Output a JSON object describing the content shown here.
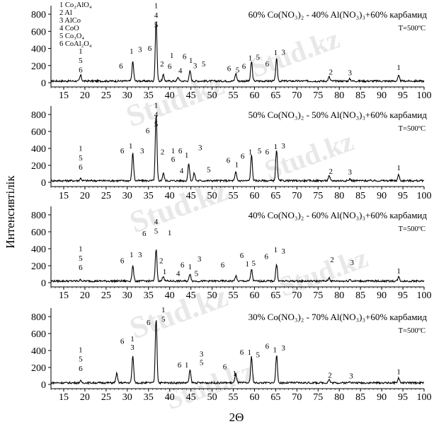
{
  "watermark": "Stud.kz",
  "xlabel": "2Θ",
  "ylabel": "Интенсивтілік",
  "xticks": [
    15,
    20,
    25,
    30,
    35,
    40,
    45,
    50,
    55,
    60,
    65,
    70,
    75,
    80,
    85,
    90,
    95,
    100
  ],
  "yticks": [
    0,
    200,
    400,
    600,
    800
  ],
  "legend": [
    "1 Co₂AlO₄",
    "2 Al",
    "3 AlCo",
    "4 CoO",
    "5 Co₃O₄",
    "6 CoAl₂O₄"
  ],
  "chart_data": [
    {
      "type": "line",
      "title": "60% Co(NO₃)₂ - 40% Al(NO₃)₃+60% карбамид",
      "subtitle": "T=500ºC",
      "xlim": [
        12,
        100
      ],
      "ylim": [
        0,
        900
      ],
      "peaks": [
        [
          19.0,
          70
        ],
        [
          31.3,
          230
        ],
        [
          36.8,
          700
        ],
        [
          38.5,
          70
        ],
        [
          42.0,
          45
        ],
        [
          44.8,
          120
        ],
        [
          55.6,
          90
        ],
        [
          59.3,
          230
        ],
        [
          65.2,
          260
        ],
        [
          77.6,
          50
        ],
        [
          82.5,
          25
        ],
        [
          94.0,
          60
        ]
      ],
      "labels": [
        {
          "x": 19.0,
          "y": 340,
          "text": "1"
        },
        {
          "x": 19.0,
          "y": 230,
          "text": "5"
        },
        {
          "x": 19.0,
          "y": 120,
          "text": "6"
        },
        {
          "x": 31.0,
          "y": 340,
          "text": "1"
        },
        {
          "x": 33.0,
          "y": 360,
          "text": "3"
        },
        {
          "x": 28.5,
          "y": 165,
          "text": "6"
        },
        {
          "x": 36.8,
          "y": 870,
          "text": "1"
        },
        {
          "x": 36.8,
          "y": 760,
          "text": "4"
        },
        {
          "x": 36.8,
          "y": 650,
          "text": "5"
        },
        {
          "x": 35.3,
          "y": 370,
          "text": "6"
        },
        {
          "x": 38.2,
          "y": 190,
          "text": "2"
        },
        {
          "x": 40.5,
          "y": 290,
          "text": "1"
        },
        {
          "x": 40.0,
          "y": 160,
          "text": "6"
        },
        {
          "x": 42.5,
          "y": 110,
          "text": "4"
        },
        {
          "x": 43.5,
          "y": 275,
          "text": "6"
        },
        {
          "x": 45.0,
          "y": 230,
          "text": "1"
        },
        {
          "x": 46.0,
          "y": 170,
          "text": "3"
        },
        {
          "x": 48.0,
          "y": 190,
          "text": "5"
        },
        {
          "x": 54.0,
          "y": 135,
          "text": "6"
        },
        {
          "x": 56.0,
          "y": 120,
          "text": "5"
        },
        {
          "x": 57.5,
          "y": 160,
          "text": "6"
        },
        {
          "x": 59.0,
          "y": 260,
          "text": "1"
        },
        {
          "x": 60.8,
          "y": 270,
          "text": "5"
        },
        {
          "x": 63.0,
          "y": 190,
          "text": "6"
        },
        {
          "x": 65.0,
          "y": 320,
          "text": "1"
        },
        {
          "x": 66.8,
          "y": 325,
          "text": "3"
        },
        {
          "x": 78.0,
          "y": 95,
          "text": "2"
        },
        {
          "x": 82.5,
          "y": 85,
          "text": "3"
        },
        {
          "x": 94.0,
          "y": 150,
          "text": "1"
        }
      ]
    },
    {
      "type": "line",
      "title": "50% Co(NO₃)₂ - 50% Al(NO₃)₃+60% карбамид",
      "subtitle": "T=500ºC",
      "xlim": [
        12,
        100
      ],
      "ylim": [
        0,
        900
      ],
      "peaks": [
        [
          19.0,
          30
        ],
        [
          31.3,
          330
        ],
        [
          36.8,
          780
        ],
        [
          38.5,
          90
        ],
        [
          44.5,
          200
        ],
        [
          45.8,
          90
        ],
        [
          55.6,
          100
        ],
        [
          59.3,
          300
        ],
        [
          65.2,
          360
        ],
        [
          77.6,
          55
        ],
        [
          82.5,
          20
        ],
        [
          94.0,
          70
        ]
      ],
      "labels": [
        {
          "x": 19.0,
          "y": 370,
          "text": "1"
        },
        {
          "x": 19.0,
          "y": 260,
          "text": "5"
        },
        {
          "x": 19.0,
          "y": 150,
          "text": "6"
        },
        {
          "x": 28.8,
          "y": 340,
          "text": "6"
        },
        {
          "x": 30.8,
          "y": 400,
          "text": "1"
        },
        {
          "x": 33.5,
          "y": 340,
          "text": "3"
        },
        {
          "x": 34.8,
          "y": 580,
          "text": "6"
        },
        {
          "x": 36.8,
          "y": 880,
          "text": "1"
        },
        {
          "x": 36.8,
          "y": 770,
          "text": "4"
        },
        {
          "x": 36.8,
          "y": 660,
          "text": "5"
        },
        {
          "x": 38.3,
          "y": 330,
          "text": "2"
        },
        {
          "x": 40.8,
          "y": 340,
          "text": "1"
        },
        {
          "x": 40.8,
          "y": 240,
          "text": "6"
        },
        {
          "x": 42.8,
          "y": 110,
          "text": "4"
        },
        {
          "x": 42.5,
          "y": 340,
          "text": "6"
        },
        {
          "x": 44.0,
          "y": 290,
          "text": "1"
        },
        {
          "x": 47.2,
          "y": 380,
          "text": "3"
        },
        {
          "x": 49.2,
          "y": 120,
          "text": "5"
        },
        {
          "x": 53.8,
          "y": 230,
          "text": "6"
        },
        {
          "x": 55.8,
          "y": 180,
          "text": "1"
        },
        {
          "x": 57.2,
          "y": 280,
          "text": "6"
        },
        {
          "x": 59.0,
          "y": 330,
          "text": "1"
        },
        {
          "x": 61.2,
          "y": 340,
          "text": "5"
        },
        {
          "x": 63.0,
          "y": 330,
          "text": "6"
        },
        {
          "x": 65.0,
          "y": 390,
          "text": "1"
        },
        {
          "x": 66.8,
          "y": 400,
          "text": "3"
        },
        {
          "x": 78.0,
          "y": 100,
          "text": "2"
        },
        {
          "x": 82.5,
          "y": 90,
          "text": "3"
        },
        {
          "x": 94.0,
          "y": 140,
          "text": "1"
        }
      ]
    },
    {
      "type": "line",
      "title": "40% Co(NO₃)₂ - 60% Al(NO₃)₃+60% карбамид",
      "subtitle": "T=500ºC",
      "xlim": [
        12,
        100
      ],
      "ylim": [
        0,
        900
      ],
      "peaks": [
        [
          19.0,
          15
        ],
        [
          31.3,
          180
        ],
        [
          36.8,
          380
        ],
        [
          38.5,
          60
        ],
        [
          44.8,
          90
        ],
        [
          55.6,
          60
        ],
        [
          59.3,
          140
        ],
        [
          65.2,
          200
        ],
        [
          77.6,
          40
        ],
        [
          82.5,
          20
        ],
        [
          94.0,
          50
        ]
      ],
      "labels": [
        {
          "x": 19.0,
          "y": 370,
          "text": "1"
        },
        {
          "x": 19.0,
          "y": 260,
          "text": "5"
        },
        {
          "x": 19.0,
          "y": 150,
          "text": "6"
        },
        {
          "x": 28.8,
          "y": 230,
          "text": "6"
        },
        {
          "x": 31.0,
          "y": 300,
          "text": "1"
        },
        {
          "x": 33.0,
          "y": 300,
          "text": "3"
        },
        {
          "x": 34.0,
          "y": 550,
          "text": "6"
        },
        {
          "x": 36.8,
          "y": 690,
          "text": "4"
        },
        {
          "x": 36.8,
          "y": 580,
          "text": "5"
        },
        {
          "x": 40.0,
          "y": 560,
          "text": "1"
        },
        {
          "x": 38.0,
          "y": 230,
          "text": "2"
        },
        {
          "x": 38.8,
          "y": 100,
          "text": "1"
        },
        {
          "x": 42.0,
          "y": 80,
          "text": "4"
        },
        {
          "x": 43.0,
          "y": 180,
          "text": "6"
        },
        {
          "x": 44.8,
          "y": 160,
          "text": "1"
        },
        {
          "x": 47.0,
          "y": 250,
          "text": "3"
        },
        {
          "x": 46.3,
          "y": 80,
          "text": "5"
        },
        {
          "x": 52.5,
          "y": 180,
          "text": "6"
        },
        {
          "x": 57.0,
          "y": 290,
          "text": "6"
        },
        {
          "x": 58.3,
          "y": 190,
          "text": "1"
        },
        {
          "x": 59.8,
          "y": 200,
          "text": "5"
        },
        {
          "x": 62.8,
          "y": 280,
          "text": "6"
        },
        {
          "x": 65.0,
          "y": 360,
          "text": "1"
        },
        {
          "x": 66.8,
          "y": 340,
          "text": "3"
        },
        {
          "x": 78.3,
          "y": 240,
          "text": "2"
        },
        {
          "x": 83.0,
          "y": 210,
          "text": "3"
        },
        {
          "x": 94.0,
          "y": 110,
          "text": "1"
        }
      ]
    },
    {
      "type": "line",
      "title": "30% Co(NO₃)₂ - 70% Al(NO₃)₃+60% карбамид",
      "subtitle": "T=500ºC",
      "xlim": [
        12,
        100
      ],
      "ylim": [
        0,
        900
      ],
      "peaks": [
        [
          19.0,
          20
        ],
        [
          27.5,
          110
        ],
        [
          31.3,
          320
        ],
        [
          36.8,
          760
        ],
        [
          44.8,
          150
        ],
        [
          55.6,
          110
        ],
        [
          59.3,
          310
        ],
        [
          65.2,
          330
        ],
        [
          77.6,
          40
        ],
        [
          82.5,
          20
        ],
        [
          94.0,
          60
        ]
      ],
      "labels": [
        {
          "x": 19.0,
          "y": 380,
          "text": "1"
        },
        {
          "x": 19.0,
          "y": 270,
          "text": "5"
        },
        {
          "x": 19.0,
          "y": 160,
          "text": "6"
        },
        {
          "x": 28.8,
          "y": 480,
          "text": "6"
        },
        {
          "x": 31.2,
          "y": 510,
          "text": "1"
        },
        {
          "x": 31.2,
          "y": 410,
          "text": "3"
        },
        {
          "x": 35.0,
          "y": 700,
          "text": "6"
        },
        {
          "x": 38.5,
          "y": 850,
          "text": "1"
        },
        {
          "x": 38.5,
          "y": 740,
          "text": "5"
        },
        {
          "x": 42.3,
          "y": 200,
          "text": "6"
        },
        {
          "x": 44.0,
          "y": 200,
          "text": "1"
        },
        {
          "x": 47.5,
          "y": 330,
          "text": "3"
        },
        {
          "x": 47.5,
          "y": 230,
          "text": "5"
        },
        {
          "x": 53.0,
          "y": 180,
          "text": "6"
        },
        {
          "x": 55.3,
          "y": 100,
          "text": "1"
        },
        {
          "x": 57.0,
          "y": 350,
          "text": "6"
        },
        {
          "x": 58.8,
          "y": 350,
          "text": "1"
        },
        {
          "x": 60.8,
          "y": 320,
          "text": "5"
        },
        {
          "x": 63.0,
          "y": 420,
          "text": "6"
        },
        {
          "x": 64.8,
          "y": 380,
          "text": "1"
        },
        {
          "x": 66.8,
          "y": 400,
          "text": "3"
        },
        {
          "x": 77.8,
          "y": 80,
          "text": "2"
        },
        {
          "x": 82.8,
          "y": 70,
          "text": "3"
        },
        {
          "x": 94.0,
          "y": 120,
          "text": "1"
        }
      ]
    }
  ]
}
